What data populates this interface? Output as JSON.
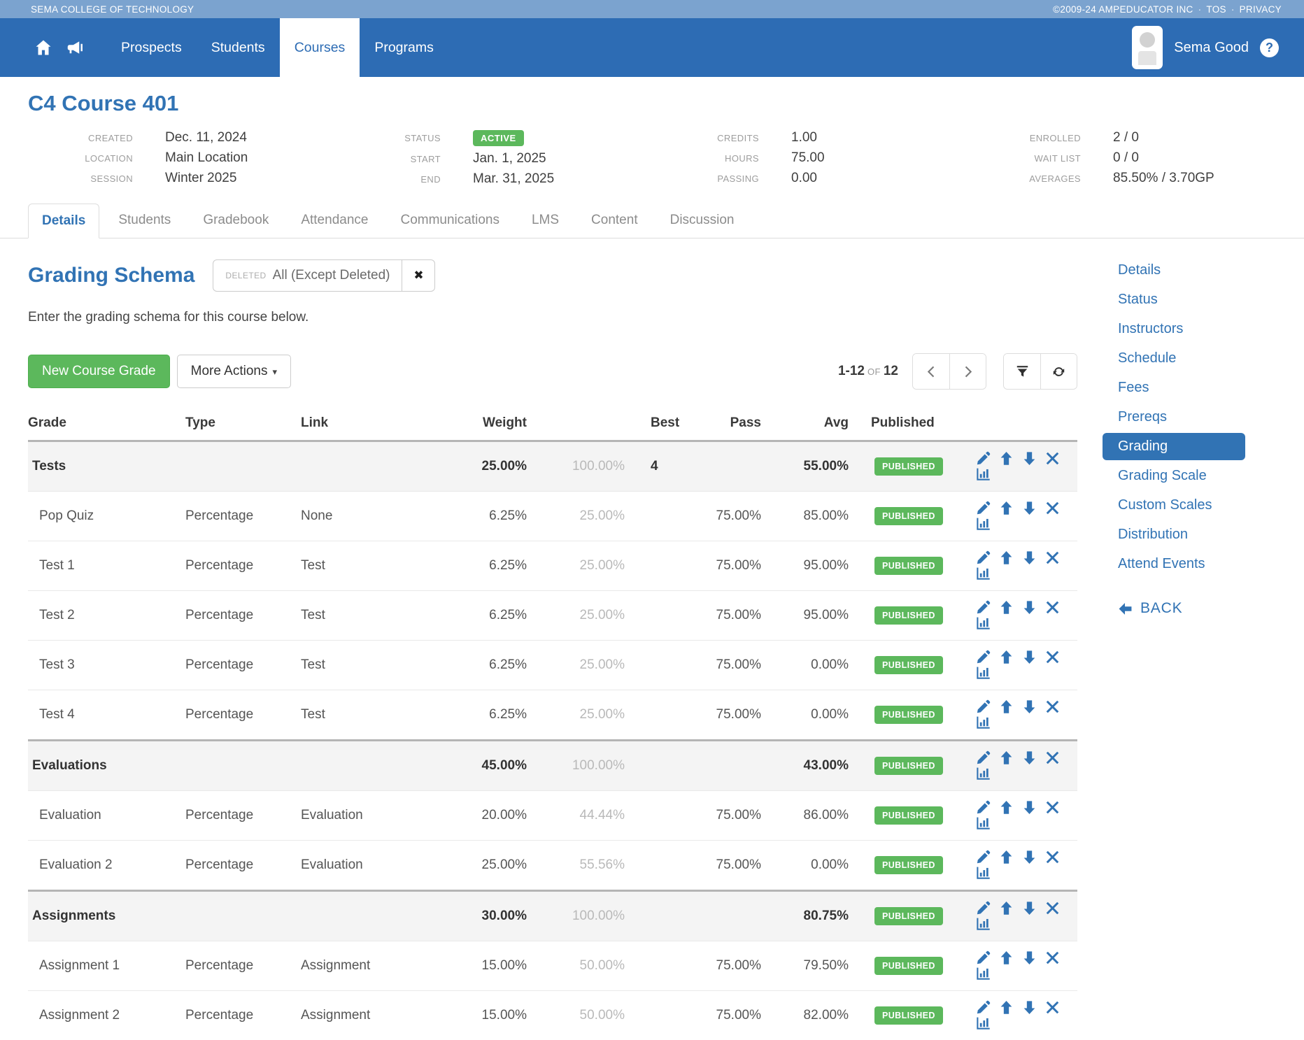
{
  "topbar": {
    "brand": "SEMA COLLEGE OF TECHNOLOGY",
    "copyright": "©2009-24 AMPEDUCATOR INC",
    "separator": "·",
    "links": [
      "TOS",
      "PRIVACY"
    ]
  },
  "navbar": {
    "items": [
      "Prospects",
      "Students",
      "Courses",
      "Programs"
    ],
    "active": "Courses",
    "user": "Sema Good",
    "help": "?"
  },
  "course": {
    "title": "C4 Course 401",
    "columns": [
      [
        {
          "label": "CREATED",
          "value": "Dec. 11, 2024"
        },
        {
          "label": "LOCATION",
          "value": "Main Location"
        },
        {
          "label": "SESSION",
          "value": "Winter 2025"
        }
      ],
      [
        {
          "label": "STATUS",
          "value": "ACTIVE",
          "badge": true
        },
        {
          "label": "START",
          "value": "Jan. 1, 2025"
        },
        {
          "label": "END",
          "value": "Mar. 31, 2025"
        }
      ],
      [
        {
          "label": "CREDITS",
          "value": "1.00"
        },
        {
          "label": "HOURS",
          "value": "75.00"
        },
        {
          "label": "PASSING",
          "value": "0.00"
        }
      ],
      [
        {
          "label": "ENROLLED",
          "value": "2 / 0"
        },
        {
          "label": "WAIT LIST",
          "value": "0 / 0"
        },
        {
          "label": "AVERAGES",
          "value": "85.50% / 3.70GP"
        }
      ]
    ]
  },
  "tabs": {
    "items": [
      "Details",
      "Students",
      "Gradebook",
      "Attendance",
      "Communications",
      "LMS",
      "Content",
      "Discussion"
    ],
    "active": "Details"
  },
  "grading": {
    "title": "Grading Schema",
    "filter_label": "DELETED",
    "filter_value": "All (Except Deleted)",
    "filter_close": "✖",
    "description": "Enter the grading schema for this course below.",
    "new_course_grade": "New Course Grade",
    "more_actions": "More Actions",
    "caret": "▾",
    "pagination": {
      "range": "1-12",
      "of": "OF",
      "total": "12"
    }
  },
  "table": {
    "headers": [
      "Grade",
      "Type",
      "Link",
      "Weight",
      "",
      "Best",
      "Pass",
      "Avg",
      "Published",
      ""
    ],
    "published_label": "PUBLISHED",
    "actions": [
      "edit",
      "move-up",
      "move-down",
      "delete",
      "stats"
    ],
    "rows": [
      {
        "group": true,
        "grade": "Tests",
        "type": "",
        "link": "",
        "weight": "25.00%",
        "max": "100.00%",
        "best": "4",
        "pass": "",
        "avg": "55.00%"
      },
      {
        "group": false,
        "grade": "Pop Quiz",
        "type": "Percentage",
        "link": "None",
        "weight": "6.25%",
        "max": "25.00%",
        "best": "",
        "pass": "75.00%",
        "avg": "85.00%"
      },
      {
        "group": false,
        "grade": "Test 1",
        "type": "Percentage",
        "link": "Test",
        "weight": "6.25%",
        "max": "25.00%",
        "best": "",
        "pass": "75.00%",
        "avg": "95.00%"
      },
      {
        "group": false,
        "grade": "Test 2",
        "type": "Percentage",
        "link": "Test",
        "weight": "6.25%",
        "max": "25.00%",
        "best": "",
        "pass": "75.00%",
        "avg": "95.00%"
      },
      {
        "group": false,
        "grade": "Test 3",
        "type": "Percentage",
        "link": "Test",
        "weight": "6.25%",
        "max": "25.00%",
        "best": "",
        "pass": "75.00%",
        "avg": "0.00%"
      },
      {
        "group": false,
        "grade": "Test 4",
        "type": "Percentage",
        "link": "Test",
        "weight": "6.25%",
        "max": "25.00%",
        "best": "",
        "pass": "75.00%",
        "avg": "0.00%"
      },
      {
        "group": true,
        "grade": "Evaluations",
        "type": "",
        "link": "",
        "weight": "45.00%",
        "max": "100.00%",
        "best": "",
        "pass": "",
        "avg": "43.00%"
      },
      {
        "group": false,
        "grade": "Evaluation",
        "type": "Percentage",
        "link": "Evaluation",
        "weight": "20.00%",
        "max": "44.44%",
        "best": "",
        "pass": "75.00%",
        "avg": "86.00%"
      },
      {
        "group": false,
        "grade": "Evaluation 2",
        "type": "Percentage",
        "link": "Evaluation",
        "weight": "25.00%",
        "max": "55.56%",
        "best": "",
        "pass": "75.00%",
        "avg": "0.00%"
      },
      {
        "group": true,
        "grade": "Assignments",
        "type": "",
        "link": "",
        "weight": "30.00%",
        "max": "100.00%",
        "best": "",
        "pass": "",
        "avg": "80.75%"
      },
      {
        "group": false,
        "grade": "Assignment 1",
        "type": "Percentage",
        "link": "Assignment",
        "weight": "15.00%",
        "max": "50.00%",
        "best": "",
        "pass": "75.00%",
        "avg": "79.50%"
      },
      {
        "group": false,
        "grade": "Assignment 2",
        "type": "Percentage",
        "link": "Assignment",
        "weight": "15.00%",
        "max": "50.00%",
        "best": "",
        "pass": "75.00%",
        "avg": "82.00%"
      }
    ]
  },
  "sidebar": {
    "items": [
      "Details",
      "Status",
      "Instructors",
      "Schedule",
      "Fees",
      "Prereqs",
      "Grading",
      "Grading Scale",
      "Custom Scales",
      "Distribution",
      "Attend Events"
    ],
    "active": "Grading",
    "back": "BACK"
  }
}
